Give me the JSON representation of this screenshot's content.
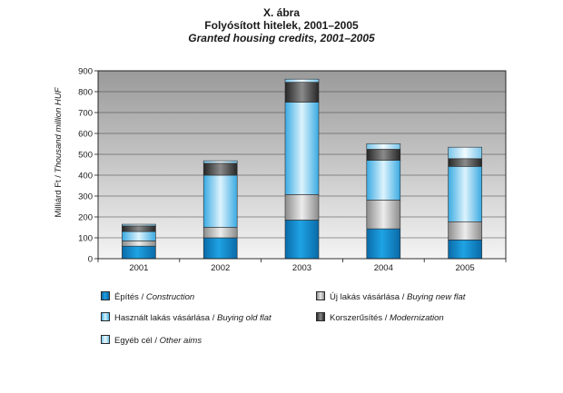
{
  "titles": {
    "line1": "X. ábra",
    "line2": "Folyósított hitelek, 2001–2005",
    "line3": "Granted housing credits, 2001–2005"
  },
  "chart_data": {
    "type": "bar",
    "stacked": true,
    "categories": [
      "2001",
      "2002",
      "2003",
      "2004",
      "2005"
    ],
    "series": [
      {
        "name": "Építés / Construction",
        "key": "construction",
        "values": [
          60,
          100,
          185,
          143,
          90
        ]
      },
      {
        "name": "Új lakás vásárlása / Buying new flat",
        "key": "new",
        "values": [
          25,
          50,
          122,
          138,
          87
        ]
      },
      {
        "name": "Használt lakás vásárlása / Buying old flat",
        "key": "old",
        "values": [
          45,
          250,
          443,
          190,
          265
        ]
      },
      {
        "name": "Korszerűsítés / Modernization",
        "key": "mod",
        "values": [
          27,
          57,
          95,
          53,
          37
        ]
      },
      {
        "name": "Egyéb cél / Other aims",
        "key": "other",
        "values": [
          8,
          12,
          15,
          27,
          55
        ]
      }
    ],
    "ylabel": "Milliárd Ft / Thousand million HUF",
    "xlabel": "",
    "ylim": [
      0,
      900
    ],
    "yticks": [
      "0",
      "100",
      "200",
      "300",
      "400",
      "500",
      "600",
      "700",
      "800",
      "900"
    ],
    "grid": true
  },
  "legend": {
    "construction": {
      "hu": "Építés / ",
      "en": "Construction"
    },
    "new": {
      "hu": "Új lakás vásárlása / ",
      "en": "Buying new flat"
    },
    "old": {
      "hu": "Használt lakás vásárlása / ",
      "en": "Buying old flat"
    },
    "mod": {
      "hu": "Korszerűsítés / ",
      "en": "Modernization"
    },
    "other": {
      "hu": "Egyéb cél / ",
      "en": "Other aims"
    }
  },
  "colors": {
    "construction": "#1596d6",
    "new": "#bdbdbd",
    "old": "#5dbfea",
    "mod": "#4a4a4a",
    "other": "#a8dcf3"
  }
}
